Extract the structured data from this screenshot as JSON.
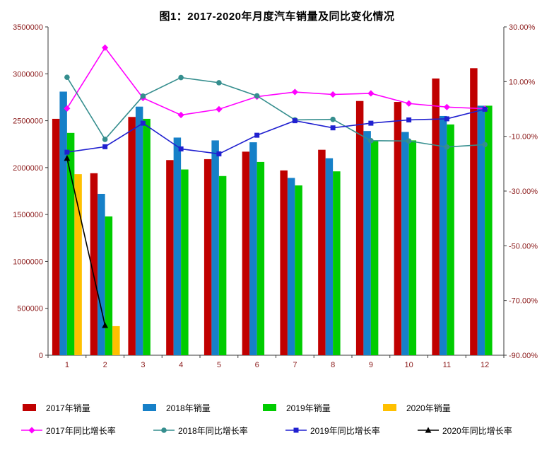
{
  "title": "图1：2017-2020年月度汽车销量及同比变化情况",
  "colors": {
    "bar_2017": "#C00000",
    "bar_2018": "#1680C8",
    "bar_2019": "#00CC00",
    "bar_2020": "#FFC000",
    "line_2017": "#FF00FF",
    "line_2018": "#358E8E",
    "line_2019": "#2020D0",
    "line_2020": "#000000",
    "axis_label": "#8B1A1A",
    "axis_line": "#3A3A3A",
    "title_text": "#000000",
    "legend_text": "#000000"
  },
  "chart_data": {
    "type": "bar+line combo",
    "title": "图1：2017-2020年月度汽车销量及同比变化情况",
    "categories": [
      "1",
      "2",
      "3",
      "4",
      "5",
      "6",
      "7",
      "8",
      "9",
      "10",
      "11",
      "12"
    ],
    "bar_series": [
      {
        "name": "2017年销量",
        "axis": "left",
        "color_key": "bar_2017",
        "values": [
          2520000,
          1940000,
          2540000,
          2080000,
          2090000,
          2170000,
          1970000,
          2190000,
          2710000,
          2700000,
          2950000,
          3060000
        ]
      },
      {
        "name": "2018年销量",
        "axis": "left",
        "color_key": "bar_2018",
        "values": [
          2810000,
          1720000,
          2650000,
          2320000,
          2290000,
          2270000,
          1890000,
          2100000,
          2390000,
          2380000,
          2550000,
          2660000
        ]
      },
      {
        "name": "2019年销量",
        "axis": "left",
        "color_key": "bar_2019",
        "values": [
          2370000,
          1480000,
          2520000,
          1980000,
          1910000,
          2060000,
          1810000,
          1960000,
          2290000,
          2290000,
          2460000,
          2660000
        ]
      },
      {
        "name": "2020年销量",
        "axis": "left",
        "color_key": "bar_2020",
        "values": [
          1930000,
          310000,
          null,
          null,
          null,
          null,
          null,
          null,
          null,
          null,
          null,
          null
        ]
      }
    ],
    "line_series": [
      {
        "name": "2017年同比增长率",
        "axis": "right",
        "color_key": "line_2017",
        "marker": "diamond",
        "values": [
          0.2,
          22.4,
          4.0,
          -2.2,
          -0.1,
          4.5,
          6.2,
          5.3,
          5.7,
          2.0,
          0.7,
          0.1
        ]
      },
      {
        "name": "2018年同比增长率",
        "axis": "right",
        "color_key": "line_2018",
        "marker": "circle",
        "values": [
          11.6,
          -11.1,
          4.7,
          11.5,
          9.6,
          4.8,
          -4.0,
          -3.8,
          -11.6,
          -11.7,
          -13.9,
          -13.0
        ]
      },
      {
        "name": "2019年同比增长率",
        "axis": "right",
        "color_key": "line_2019",
        "marker": "square",
        "values": [
          -15.8,
          -13.8,
          -5.2,
          -14.6,
          -16.4,
          -9.6,
          -4.3,
          -6.9,
          -5.2,
          -4.0,
          -3.6,
          -0.1
        ]
      },
      {
        "name": "2020年同比增长率",
        "axis": "right",
        "color_key": "line_2020",
        "marker": "triangle",
        "values": [
          -18.0,
          -79.1,
          null,
          null,
          null,
          null,
          null,
          null,
          null,
          null,
          null,
          null
        ]
      }
    ],
    "left_axis": {
      "min": 0,
      "max": 3500000,
      "tick_labels": [
        "0",
        "500000",
        "1000000",
        "1500000",
        "2000000",
        "2500000",
        "3000000",
        "3500000"
      ]
    },
    "right_axis": {
      "min": -90,
      "max": 30,
      "tick_labels": [
        "-90.00%",
        "-70.00%",
        "-50.00%",
        "-30.00%",
        "-10.00%",
        "10.00%",
        "30.00%"
      ]
    },
    "grid": "off",
    "legend_position": "bottom"
  }
}
